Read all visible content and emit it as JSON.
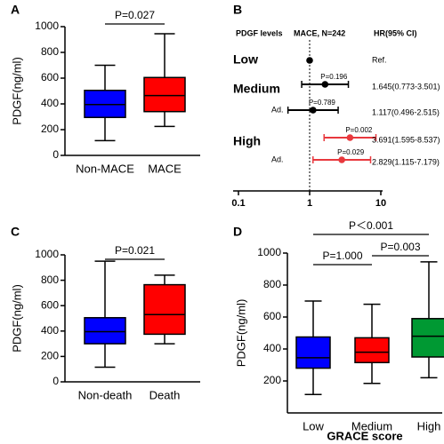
{
  "chart_data": [
    {
      "type": "box",
      "panel_label": "A",
      "ylabel": "PDGF(ng/ml)",
      "categories": [
        "Non-MACE",
        "MACE"
      ],
      "boxes": [
        {
          "min": 115,
          "q1": 295,
          "median": 395,
          "q3": 505,
          "max": 700
        },
        {
          "min": 225,
          "q1": 340,
          "median": 465,
          "q3": 605,
          "max": 945
        }
      ],
      "colors": [
        "#0000ff",
        "#ff0000"
      ],
      "ylim": [
        0,
        1000
      ],
      "yticks": [
        0,
        200,
        400,
        600,
        800,
        1000
      ],
      "annotations": [
        "P=0.027"
      ]
    },
    {
      "type": "forest",
      "panel_label": "B",
      "headers": [
        "PDGF levels",
        "MACE, N=242",
        "HR(95% CI)"
      ],
      "rows": [
        {
          "group": "Low",
          "hr": 1,
          "ci_text": "Ref.",
          "color": "#000000"
        },
        {
          "group": "Medium",
          "hr": 1.645,
          "lo": 0.773,
          "hi": 3.501,
          "p": "P=0.196",
          "ci_text": "1.645(0.773-3.501)",
          "color": "#000000"
        },
        {
          "label": "Ad.",
          "hr": 1.117,
          "lo": 0.496,
          "hi": 2.515,
          "p": "P=0.789",
          "ci_text": "1.117(0.496-2.515)",
          "color": "#000000"
        },
        {
          "group": "High",
          "hr": 3.691,
          "lo": 1.595,
          "hi": 8.537,
          "p": "P=0.002",
          "ci_text": "3.691(1.595-8.537)",
          "color": "#e8383d"
        },
        {
          "label": "Ad.",
          "hr": 2.829,
          "lo": 1.115,
          "hi": 7.179,
          "p": "P=0.029",
          "ci_text": "2.829(1.115-7.179)",
          "color": "#e8383d"
        }
      ],
      "log_x": true,
      "xlim": [
        0.1,
        10
      ],
      "xticks": [
        0.1,
        1,
        10
      ],
      "reference_line": 1
    },
    {
      "type": "box",
      "panel_label": "C",
      "ylabel": "PDGF(ng/ml)",
      "categories": [
        "Non-death",
        "Death"
      ],
      "boxes": [
        {
          "min": 115,
          "q1": 300,
          "median": 395,
          "q3": 505,
          "max": 950
        },
        {
          "min": 300,
          "q1": 375,
          "median": 530,
          "q3": 765,
          "max": 840
        }
      ],
      "colors": [
        "#0000ff",
        "#ff0000"
      ],
      "ylim": [
        0,
        1000
      ],
      "yticks": [
        0,
        200,
        400,
        600,
        800,
        1000
      ],
      "annotations": [
        "P=0.021"
      ]
    },
    {
      "type": "box",
      "panel_label": "D",
      "ylabel": "PDGF(ng/ml)",
      "xlabel": "GRACE score",
      "categories": [
        "Low",
        "Medium",
        "High"
      ],
      "boxes": [
        {
          "min": 115,
          "q1": 280,
          "median": 345,
          "q3": 475,
          "max": 700
        },
        {
          "min": 185,
          "q1": 315,
          "median": 380,
          "q3": 470,
          "max": 680
        },
        {
          "min": 220,
          "q1": 350,
          "median": 480,
          "q3": 590,
          "max": 945
        }
      ],
      "colors": [
        "#0000ff",
        "#ff0000",
        "#009933"
      ],
      "ylim": [
        0,
        1000
      ],
      "yticks": [
        200,
        400,
        600,
        800,
        1000
      ],
      "annotations": [
        "P＜0.001",
        "P=1.000",
        "P=0.003"
      ]
    }
  ]
}
